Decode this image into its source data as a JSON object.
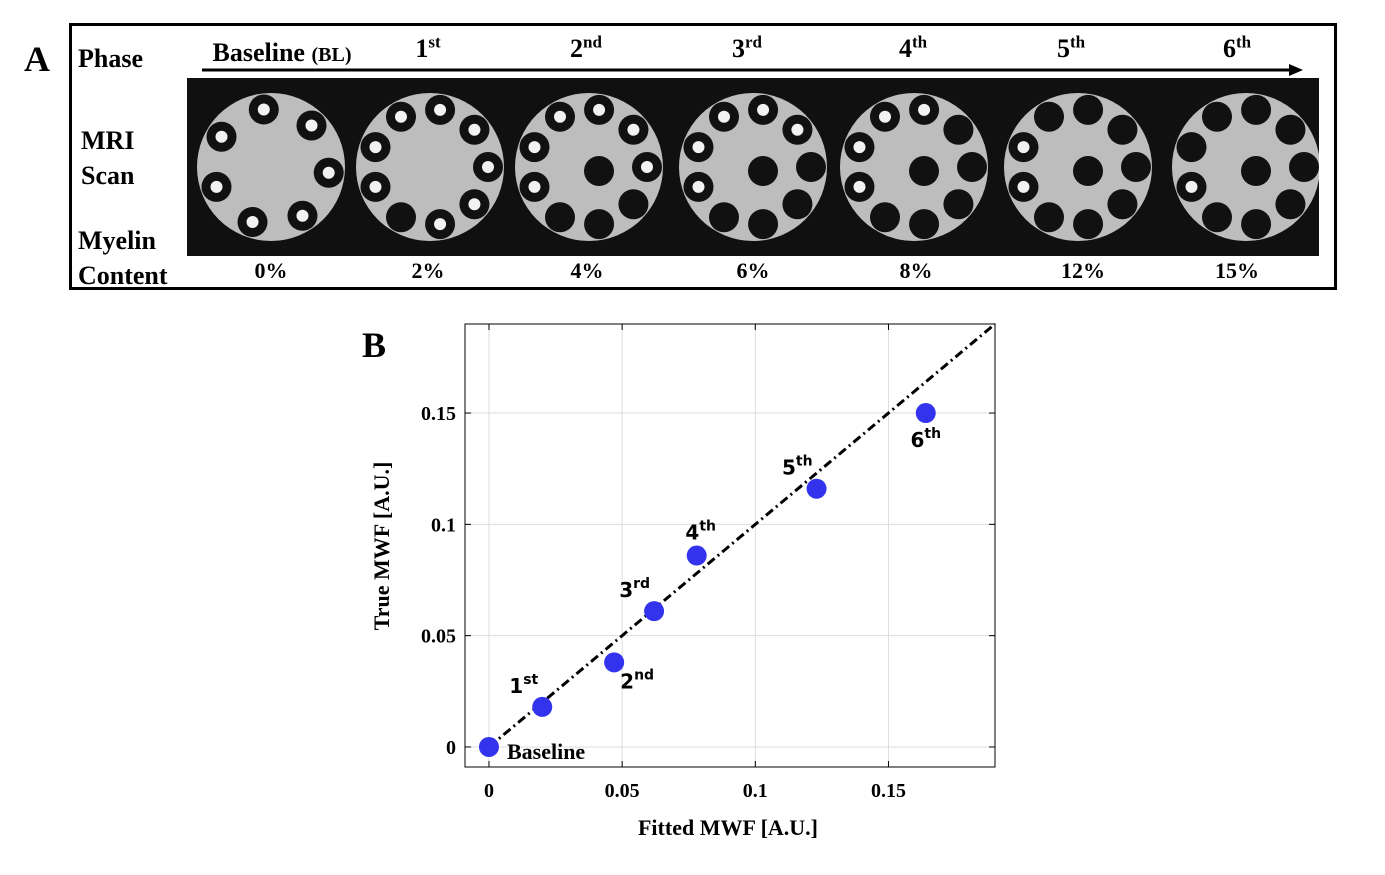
{
  "panel_a": {
    "letter": "A",
    "row_labels": {
      "phase": "Phase",
      "mri_line1": "MRI",
      "mri_line2": "Scan",
      "myelin_line1": "Myelin",
      "myelin_line2": "Content"
    },
    "phases": [
      {
        "main": "Baseline",
        "suffix": "(BL)",
        "myelin": "0%",
        "filled_vials": 0
      },
      {
        "main": "1",
        "suffix": "st",
        "myelin": "2%",
        "filled_vials": 1
      },
      {
        "main": "2",
        "suffix": "nd",
        "myelin": "4%",
        "filled_vials": 3
      },
      {
        "main": "3",
        "suffix": "rd",
        "myelin": "6%",
        "filled_vials": 4
      },
      {
        "main": "4",
        "suffix": "th",
        "myelin": "8%",
        "filled_vials": 5
      },
      {
        "main": "5",
        "suffix": "th",
        "myelin": "12%",
        "filled_vials": 7
      },
      {
        "main": "6",
        "suffix": "th",
        "myelin": "15%",
        "filled_vials": 8
      }
    ]
  },
  "chart_data": {
    "type": "scatter",
    "panel_letter": "B",
    "xlabel": "Fitted MWF [A.U.]",
    "ylabel": "True MWF [A.U.]",
    "xlim": [
      -0.009,
      0.19
    ],
    "ylim": [
      -0.009,
      0.19
    ],
    "xticks": [
      0,
      0.05,
      0.1,
      0.15
    ],
    "yticks": [
      0,
      0.05,
      0.1,
      0.15
    ],
    "xtick_labels": [
      "0",
      "0.05",
      "0.1",
      "0.15"
    ],
    "ytick_labels": [
      "0",
      "0.05",
      "0.1",
      "0.15"
    ],
    "grid": true,
    "identity_line": true,
    "marker_color": "#3333ee",
    "points": [
      {
        "x": 0.0,
        "y": 0.0,
        "label": "Baseline",
        "sup": "",
        "label_pos": "right-below"
      },
      {
        "x": 0.02,
        "y": 0.018,
        "label": "1",
        "sup": "st",
        "label_pos": "above-left"
      },
      {
        "x": 0.047,
        "y": 0.038,
        "label": "2",
        "sup": "nd",
        "label_pos": "below-right"
      },
      {
        "x": 0.062,
        "y": 0.061,
        "label": "3",
        "sup": "rd",
        "label_pos": "above-left"
      },
      {
        "x": 0.078,
        "y": 0.086,
        "label": "4",
        "sup": "th",
        "label_pos": "above"
      },
      {
        "x": 0.123,
        "y": 0.116,
        "label": "5",
        "sup": "th",
        "label_pos": "above-left"
      },
      {
        "x": 0.164,
        "y": 0.15,
        "label": "6",
        "sup": "th",
        "label_pos": "below"
      }
    ]
  }
}
